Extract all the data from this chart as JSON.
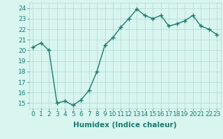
{
  "x": [
    0,
    1,
    2,
    3,
    4,
    5,
    6,
    7,
    8,
    9,
    10,
    11,
    12,
    13,
    14,
    15,
    16,
    17,
    18,
    19,
    20,
    21,
    22,
    23
  ],
  "y": [
    20.3,
    20.7,
    20.0,
    15.0,
    15.2,
    14.8,
    15.3,
    16.2,
    18.0,
    20.5,
    21.2,
    22.2,
    23.0,
    23.9,
    23.3,
    23.0,
    23.3,
    22.3,
    22.5,
    22.8,
    23.3,
    22.3,
    22.0,
    21.5
  ],
  "line_color": "#1a7a6e",
  "marker": "+",
  "bg_color": "#d8f5f0",
  "grid_color": "#b0d8d0",
  "xlabel": "Humidex (Indice chaleur)",
  "xlim": [
    -0.5,
    23.5
  ],
  "ylim": [
    14.5,
    24.5
  ],
  "yticks": [
    15,
    16,
    17,
    18,
    19,
    20,
    21,
    22,
    23,
    24
  ],
  "xticks": [
    0,
    1,
    2,
    3,
    4,
    5,
    6,
    7,
    8,
    9,
    10,
    11,
    12,
    13,
    14,
    15,
    16,
    17,
    18,
    19,
    20,
    21,
    22,
    23
  ],
  "tick_fontsize": 6.5,
  "xlabel_fontsize": 7.5,
  "linewidth": 1.0,
  "markersize": 4
}
